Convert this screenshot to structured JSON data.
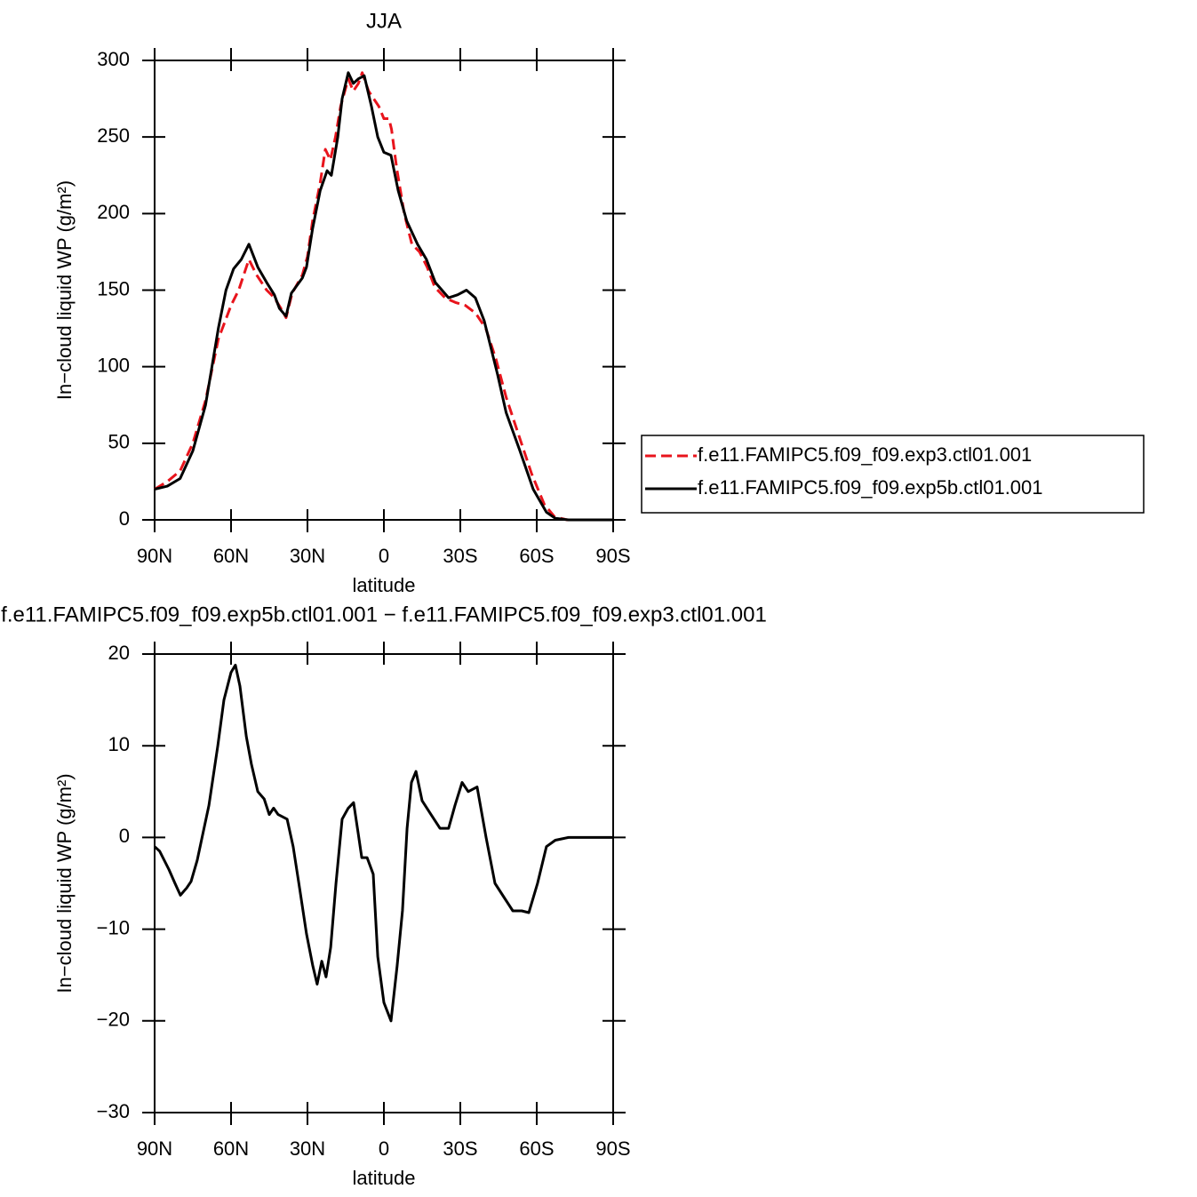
{
  "chart_data": [
    {
      "type": "line",
      "title": "JJA",
      "x_label": "latitude",
      "y_label": "In−cloud liquid WP (g/m²)",
      "xlim": [
        90,
        -90
      ],
      "ylim": [
        0,
        300
      ],
      "xticks": [
        {
          "value": 90,
          "label": "90N"
        },
        {
          "value": 60,
          "label": "60N"
        },
        {
          "value": 30,
          "label": "30N"
        },
        0,
        {
          "value": -30,
          "label": "30S"
        },
        {
          "value": -60,
          "label": "60S"
        },
        {
          "value": -90,
          "label": "90S"
        }
      ],
      "yticks": [
        0,
        50,
        100,
        150,
        200,
        250,
        300
      ],
      "legend": "right",
      "series": [
        {
          "name": "f.e11.FAMIPC5.f09_f09.exp3.ctl01.001",
          "color": "#e8141c",
          "line_style": "dashed",
          "x": [
            90,
            85,
            80,
            75,
            70,
            65,
            60,
            57,
            55,
            53,
            50,
            46,
            43,
            40,
            38.4,
            36,
            32,
            30,
            28,
            25,
            23,
            21,
            19,
            17,
            14,
            12,
            10,
            8.5,
            6,
            4,
            2,
            0,
            -2,
            -3,
            -5,
            -8,
            -11,
            -14,
            -17,
            -20,
            -24,
            -28,
            -32,
            -36,
            -40,
            -44,
            -48,
            -53,
            -58,
            -63,
            -67,
            -72,
            -90
          ],
          "values": [
            20,
            25,
            32,
            50,
            78,
            118,
            140,
            150,
            160,
            170,
            160,
            150,
            145,
            137,
            132,
            148,
            160,
            172,
            195,
            220,
            242,
            235,
            250,
            270,
            288,
            280,
            285,
            292,
            280,
            275,
            270,
            262,
            262,
            255,
            230,
            200,
            180,
            175,
            165,
            152,
            145,
            142,
            140,
            135,
            125,
            105,
            80,
            55,
            30,
            10,
            2,
            0,
            0
          ]
        },
        {
          "name": "f.e11.FAMIPC5.f09_f09.exp5b.ctl01.001",
          "color": "#000000",
          "line_style": "solid",
          "x": [
            90,
            85,
            80,
            75,
            70,
            65,
            62,
            59,
            56,
            53,
            49.5,
            46,
            43,
            41,
            38.4,
            36.3,
            32,
            30.4,
            28,
            25,
            22.3,
            20.6,
            18.1,
            16.4,
            14,
            12,
            10,
            7.7,
            4.9,
            2.4,
            0,
            -2.8,
            -5.6,
            -9,
            -13.2,
            -16.7,
            -20.2,
            -25.4,
            -29,
            -32.4,
            -35.9,
            -39.4,
            -44.6,
            -48,
            -53.4,
            -58.6,
            -63.8,
            -67.3,
            -72.5,
            -90
          ],
          "values": [
            20,
            22,
            27,
            45,
            75,
            125,
            150,
            164,
            170,
            180,
            165,
            155,
            147,
            138,
            133,
            148,
            158,
            165,
            190,
            215,
            228,
            225,
            250,
            275,
            292,
            285,
            288,
            290,
            270,
            250,
            240,
            238,
            215,
            195,
            180,
            170,
            155,
            145,
            147,
            150,
            145,
            130,
            95,
            70,
            45,
            20,
            5,
            1,
            0,
            0
          ]
        }
      ]
    },
    {
      "type": "line",
      "title": "f.e11.FAMIPC5.f09_f09.exp5b.ctl01.001 − f.e11.FAMIPC5.f09_f09.exp3.ctl01.001",
      "x_label": "latitude",
      "y_label": "In−cloud liquid WP (g/m²)",
      "xlim": [
        90,
        -90
      ],
      "ylim": [
        -30,
        20
      ],
      "xticks": [
        {
          "value": 90,
          "label": "90N"
        },
        {
          "value": 60,
          "label": "60N"
        },
        {
          "value": 30,
          "label": "30N"
        },
        0,
        {
          "value": -30,
          "label": "30S"
        },
        {
          "value": -60,
          "label": "60S"
        },
        {
          "value": -90,
          "label": "90S"
        }
      ],
      "yticks": [
        20,
        10,
        0,
        {
          "value": -10,
          "label": "−10"
        },
        {
          "value": -20,
          "label": "−20"
        },
        {
          "value": -30,
          "label": "−30"
        }
      ],
      "color": "#000000",
      "x": [
        90,
        88,
        84.4,
        82,
        79.9,
        77.4,
        75.7,
        73.3,
        71,
        68.7,
        65.2,
        62.8,
        60,
        58.3,
        56.5,
        54,
        52,
        49.5,
        47,
        45,
        43.3,
        41.5,
        38,
        35.6,
        33.1,
        30.4,
        27.9,
        26.2,
        24.4,
        22.7,
        20.9,
        18.8,
        16.4,
        14,
        11.9,
        10.1,
        8.7,
        6.6,
        4.2,
        2.4,
        0,
        -2.8,
        -5.2,
        -7.3,
        -9.1,
        -10.8,
        -12.6,
        -15,
        -18.5,
        -22,
        -25.4,
        -27.9,
        -30.7,
        -33.1,
        -36.6,
        -40.1,
        -43.6,
        -47.1,
        -50.6,
        -54.1,
        -56.9,
        -60.3,
        -63.8,
        -67.3,
        -72.5,
        -90
      ],
      "values": [
        -1,
        -1.5,
        -3.5,
        -5,
        -6.3,
        -5.5,
        -4.8,
        -2.5,
        0.5,
        3.5,
        10,
        15,
        18,
        18.8,
        16.5,
        11,
        8,
        5,
        4.2,
        2.5,
        3.2,
        2.5,
        2,
        -1,
        -5.5,
        -10.5,
        -14,
        -16,
        -13.5,
        -15.2,
        -12,
        -5,
        2,
        3.2,
        3.8,
        0.5,
        -2.2,
        -2.2,
        -4,
        -13,
        -18,
        -20,
        -14,
        -8,
        1,
        6,
        7.2,
        4,
        2.5,
        1,
        1,
        3.5,
        6,
        5,
        5.5,
        0,
        -5,
        -6.5,
        -8,
        -8,
        -8.2,
        -5,
        -1,
        -0.3,
        0,
        0
      ]
    }
  ]
}
